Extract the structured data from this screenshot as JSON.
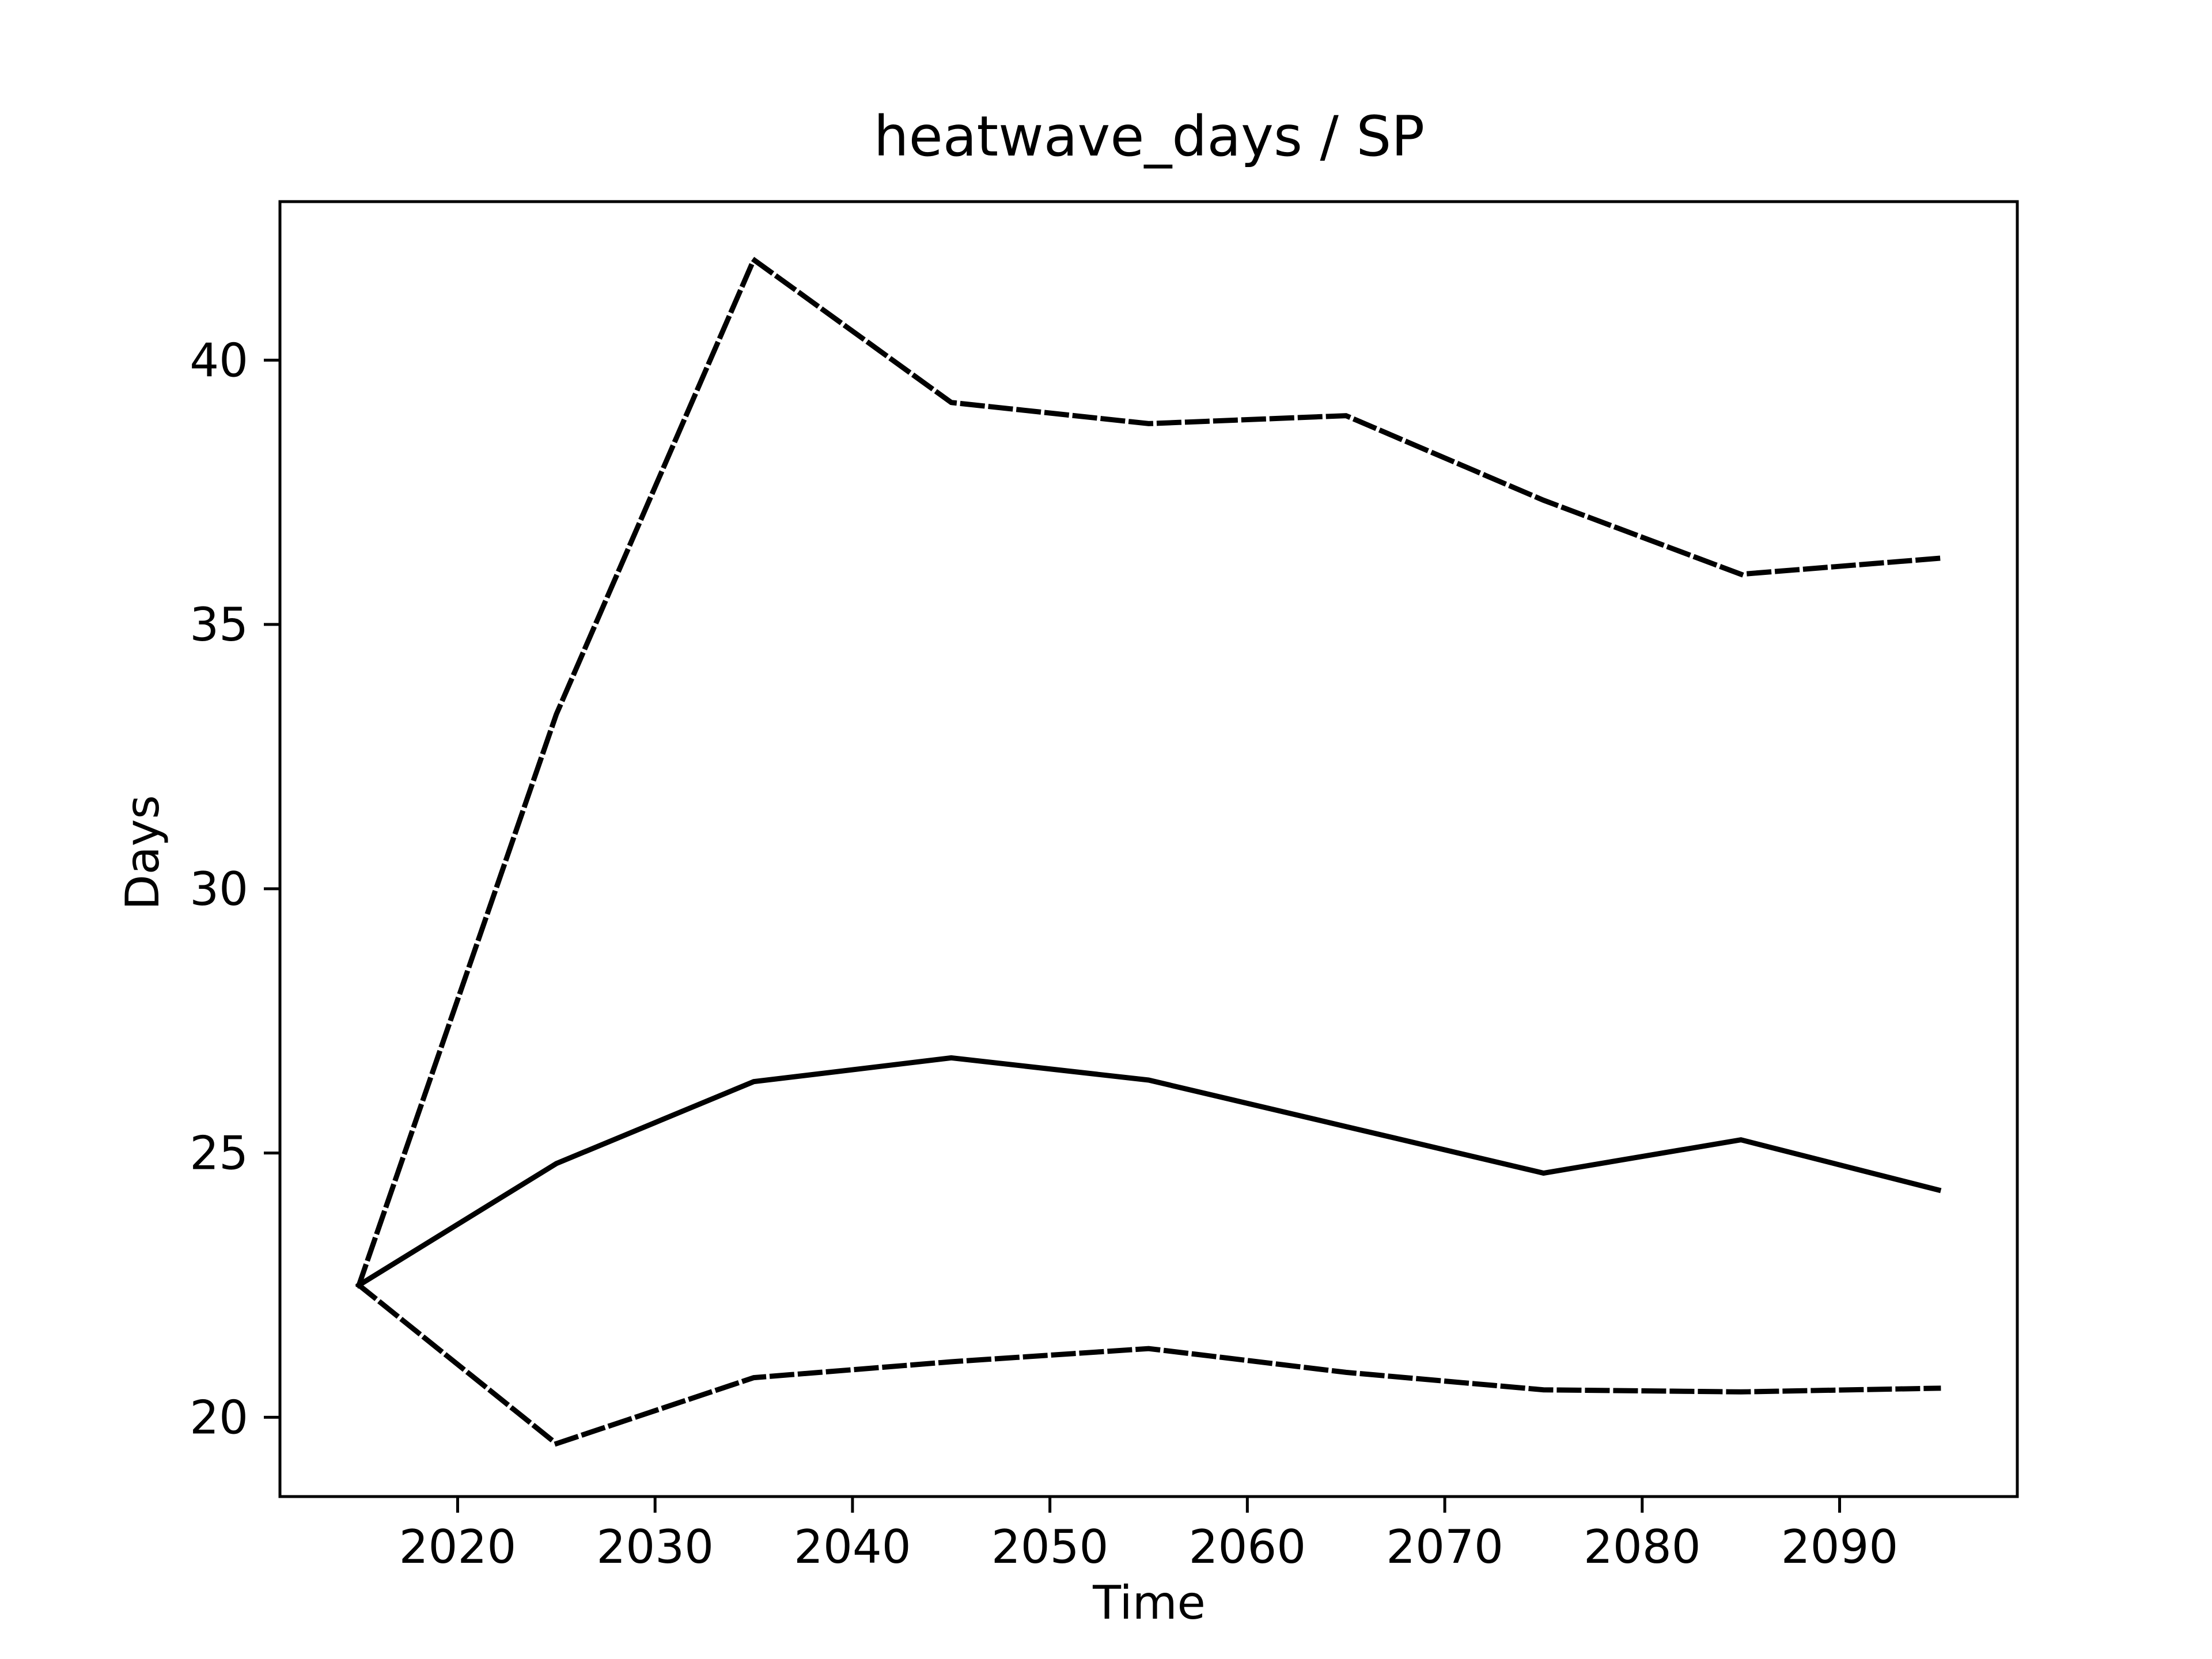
{
  "chart_data": {
    "type": "line",
    "title": "heatwave_days / SP",
    "xlabel": "Time",
    "ylabel": "Days",
    "xlim": [
      2011,
      2099
    ],
    "ylim": [
      18.5,
      43.0
    ],
    "xticks": [
      2020,
      2030,
      2040,
      2050,
      2060,
      2070,
      2080,
      2090
    ],
    "yticks": [
      20,
      25,
      30,
      35,
      40
    ],
    "grid": false,
    "x": [
      2015,
      2025,
      2035,
      2045,
      2055,
      2065,
      2075,
      2085,
      2095
    ],
    "series": [
      {
        "style": "solid",
        "color": "#000000",
        "values": [
          22.5,
          24.8,
          26.35,
          26.8,
          26.38,
          25.5,
          24.62,
          25.25,
          24.3
        ]
      },
      {
        "style": "dashed",
        "color": "#000000",
        "values": [
          22.5,
          33.3,
          41.9,
          39.2,
          38.8,
          38.95,
          37.35,
          35.95,
          36.25
        ]
      },
      {
        "style": "dashed",
        "color": "#000000",
        "values": [
          22.5,
          19.5,
          20.75,
          21.05,
          21.3,
          20.85,
          20.52,
          20.48,
          20.55
        ]
      }
    ]
  }
}
